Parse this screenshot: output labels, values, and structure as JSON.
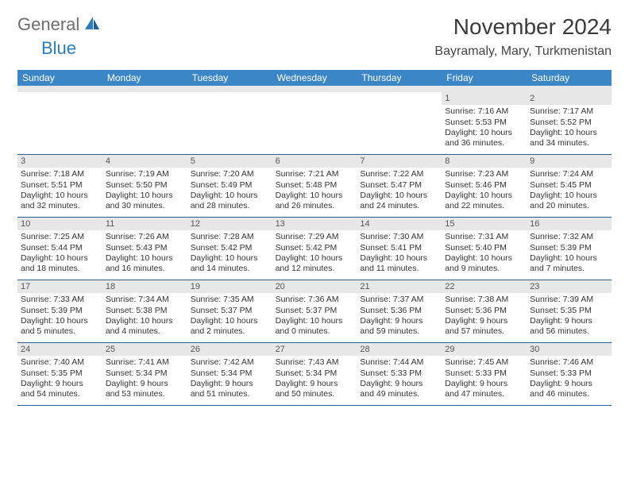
{
  "brand": {
    "general": "General",
    "blue": "Blue"
  },
  "title": {
    "month": "November 2024",
    "location": "Bayramaly, Mary, Turkmenistan"
  },
  "colors": {
    "header_bg": "#3b86c6",
    "header_text": "#ffffff",
    "daynum_bg": "#e7e7e7",
    "week_border": "#2b5f8f",
    "text": "#333333",
    "logo_gray": "#6d6d6d",
    "logo_blue": "#2b7bbf"
  },
  "weekdays": [
    "Sunday",
    "Monday",
    "Tuesday",
    "Wednesday",
    "Thursday",
    "Friday",
    "Saturday"
  ],
  "weeks": [
    [
      {
        "n": "",
        "sr": "",
        "ss": "",
        "dl1": "",
        "dl2": ""
      },
      {
        "n": "",
        "sr": "",
        "ss": "",
        "dl1": "",
        "dl2": ""
      },
      {
        "n": "",
        "sr": "",
        "ss": "",
        "dl1": "",
        "dl2": ""
      },
      {
        "n": "",
        "sr": "",
        "ss": "",
        "dl1": "",
        "dl2": ""
      },
      {
        "n": "",
        "sr": "",
        "ss": "",
        "dl1": "",
        "dl2": ""
      },
      {
        "n": "1",
        "sr": "Sunrise: 7:16 AM",
        "ss": "Sunset: 5:53 PM",
        "dl1": "Daylight: 10 hours",
        "dl2": "and 36 minutes."
      },
      {
        "n": "2",
        "sr": "Sunrise: 7:17 AM",
        "ss": "Sunset: 5:52 PM",
        "dl1": "Daylight: 10 hours",
        "dl2": "and 34 minutes."
      }
    ],
    [
      {
        "n": "3",
        "sr": "Sunrise: 7:18 AM",
        "ss": "Sunset: 5:51 PM",
        "dl1": "Daylight: 10 hours",
        "dl2": "and 32 minutes."
      },
      {
        "n": "4",
        "sr": "Sunrise: 7:19 AM",
        "ss": "Sunset: 5:50 PM",
        "dl1": "Daylight: 10 hours",
        "dl2": "and 30 minutes."
      },
      {
        "n": "5",
        "sr": "Sunrise: 7:20 AM",
        "ss": "Sunset: 5:49 PM",
        "dl1": "Daylight: 10 hours",
        "dl2": "and 28 minutes."
      },
      {
        "n": "6",
        "sr": "Sunrise: 7:21 AM",
        "ss": "Sunset: 5:48 PM",
        "dl1": "Daylight: 10 hours",
        "dl2": "and 26 minutes."
      },
      {
        "n": "7",
        "sr": "Sunrise: 7:22 AM",
        "ss": "Sunset: 5:47 PM",
        "dl1": "Daylight: 10 hours",
        "dl2": "and 24 minutes."
      },
      {
        "n": "8",
        "sr": "Sunrise: 7:23 AM",
        "ss": "Sunset: 5:46 PM",
        "dl1": "Daylight: 10 hours",
        "dl2": "and 22 minutes."
      },
      {
        "n": "9",
        "sr": "Sunrise: 7:24 AM",
        "ss": "Sunset: 5:45 PM",
        "dl1": "Daylight: 10 hours",
        "dl2": "and 20 minutes."
      }
    ],
    [
      {
        "n": "10",
        "sr": "Sunrise: 7:25 AM",
        "ss": "Sunset: 5:44 PM",
        "dl1": "Daylight: 10 hours",
        "dl2": "and 18 minutes."
      },
      {
        "n": "11",
        "sr": "Sunrise: 7:26 AM",
        "ss": "Sunset: 5:43 PM",
        "dl1": "Daylight: 10 hours",
        "dl2": "and 16 minutes."
      },
      {
        "n": "12",
        "sr": "Sunrise: 7:28 AM",
        "ss": "Sunset: 5:42 PM",
        "dl1": "Daylight: 10 hours",
        "dl2": "and 14 minutes."
      },
      {
        "n": "13",
        "sr": "Sunrise: 7:29 AM",
        "ss": "Sunset: 5:42 PM",
        "dl1": "Daylight: 10 hours",
        "dl2": "and 12 minutes."
      },
      {
        "n": "14",
        "sr": "Sunrise: 7:30 AM",
        "ss": "Sunset: 5:41 PM",
        "dl1": "Daylight: 10 hours",
        "dl2": "and 11 minutes."
      },
      {
        "n": "15",
        "sr": "Sunrise: 7:31 AM",
        "ss": "Sunset: 5:40 PM",
        "dl1": "Daylight: 10 hours",
        "dl2": "and 9 minutes."
      },
      {
        "n": "16",
        "sr": "Sunrise: 7:32 AM",
        "ss": "Sunset: 5:39 PM",
        "dl1": "Daylight: 10 hours",
        "dl2": "and 7 minutes."
      }
    ],
    [
      {
        "n": "17",
        "sr": "Sunrise: 7:33 AM",
        "ss": "Sunset: 5:39 PM",
        "dl1": "Daylight: 10 hours",
        "dl2": "and 5 minutes."
      },
      {
        "n": "18",
        "sr": "Sunrise: 7:34 AM",
        "ss": "Sunset: 5:38 PM",
        "dl1": "Daylight: 10 hours",
        "dl2": "and 4 minutes."
      },
      {
        "n": "19",
        "sr": "Sunrise: 7:35 AM",
        "ss": "Sunset: 5:37 PM",
        "dl1": "Daylight: 10 hours",
        "dl2": "and 2 minutes."
      },
      {
        "n": "20",
        "sr": "Sunrise: 7:36 AM",
        "ss": "Sunset: 5:37 PM",
        "dl1": "Daylight: 10 hours",
        "dl2": "and 0 minutes."
      },
      {
        "n": "21",
        "sr": "Sunrise: 7:37 AM",
        "ss": "Sunset: 5:36 PM",
        "dl1": "Daylight: 9 hours",
        "dl2": "and 59 minutes."
      },
      {
        "n": "22",
        "sr": "Sunrise: 7:38 AM",
        "ss": "Sunset: 5:36 PM",
        "dl1": "Daylight: 9 hours",
        "dl2": "and 57 minutes."
      },
      {
        "n": "23",
        "sr": "Sunrise: 7:39 AM",
        "ss": "Sunset: 5:35 PM",
        "dl1": "Daylight: 9 hours",
        "dl2": "and 56 minutes."
      }
    ],
    [
      {
        "n": "24",
        "sr": "Sunrise: 7:40 AM",
        "ss": "Sunset: 5:35 PM",
        "dl1": "Daylight: 9 hours",
        "dl2": "and 54 minutes."
      },
      {
        "n": "25",
        "sr": "Sunrise: 7:41 AM",
        "ss": "Sunset: 5:34 PM",
        "dl1": "Daylight: 9 hours",
        "dl2": "and 53 minutes."
      },
      {
        "n": "26",
        "sr": "Sunrise: 7:42 AM",
        "ss": "Sunset: 5:34 PM",
        "dl1": "Daylight: 9 hours",
        "dl2": "and 51 minutes."
      },
      {
        "n": "27",
        "sr": "Sunrise: 7:43 AM",
        "ss": "Sunset: 5:34 PM",
        "dl1": "Daylight: 9 hours",
        "dl2": "and 50 minutes."
      },
      {
        "n": "28",
        "sr": "Sunrise: 7:44 AM",
        "ss": "Sunset: 5:33 PM",
        "dl1": "Daylight: 9 hours",
        "dl2": "and 49 minutes."
      },
      {
        "n": "29",
        "sr": "Sunrise: 7:45 AM",
        "ss": "Sunset: 5:33 PM",
        "dl1": "Daylight: 9 hours",
        "dl2": "and 47 minutes."
      },
      {
        "n": "30",
        "sr": "Sunrise: 7:46 AM",
        "ss": "Sunset: 5:33 PM",
        "dl1": "Daylight: 9 hours",
        "dl2": "and 46 minutes."
      }
    ]
  ]
}
